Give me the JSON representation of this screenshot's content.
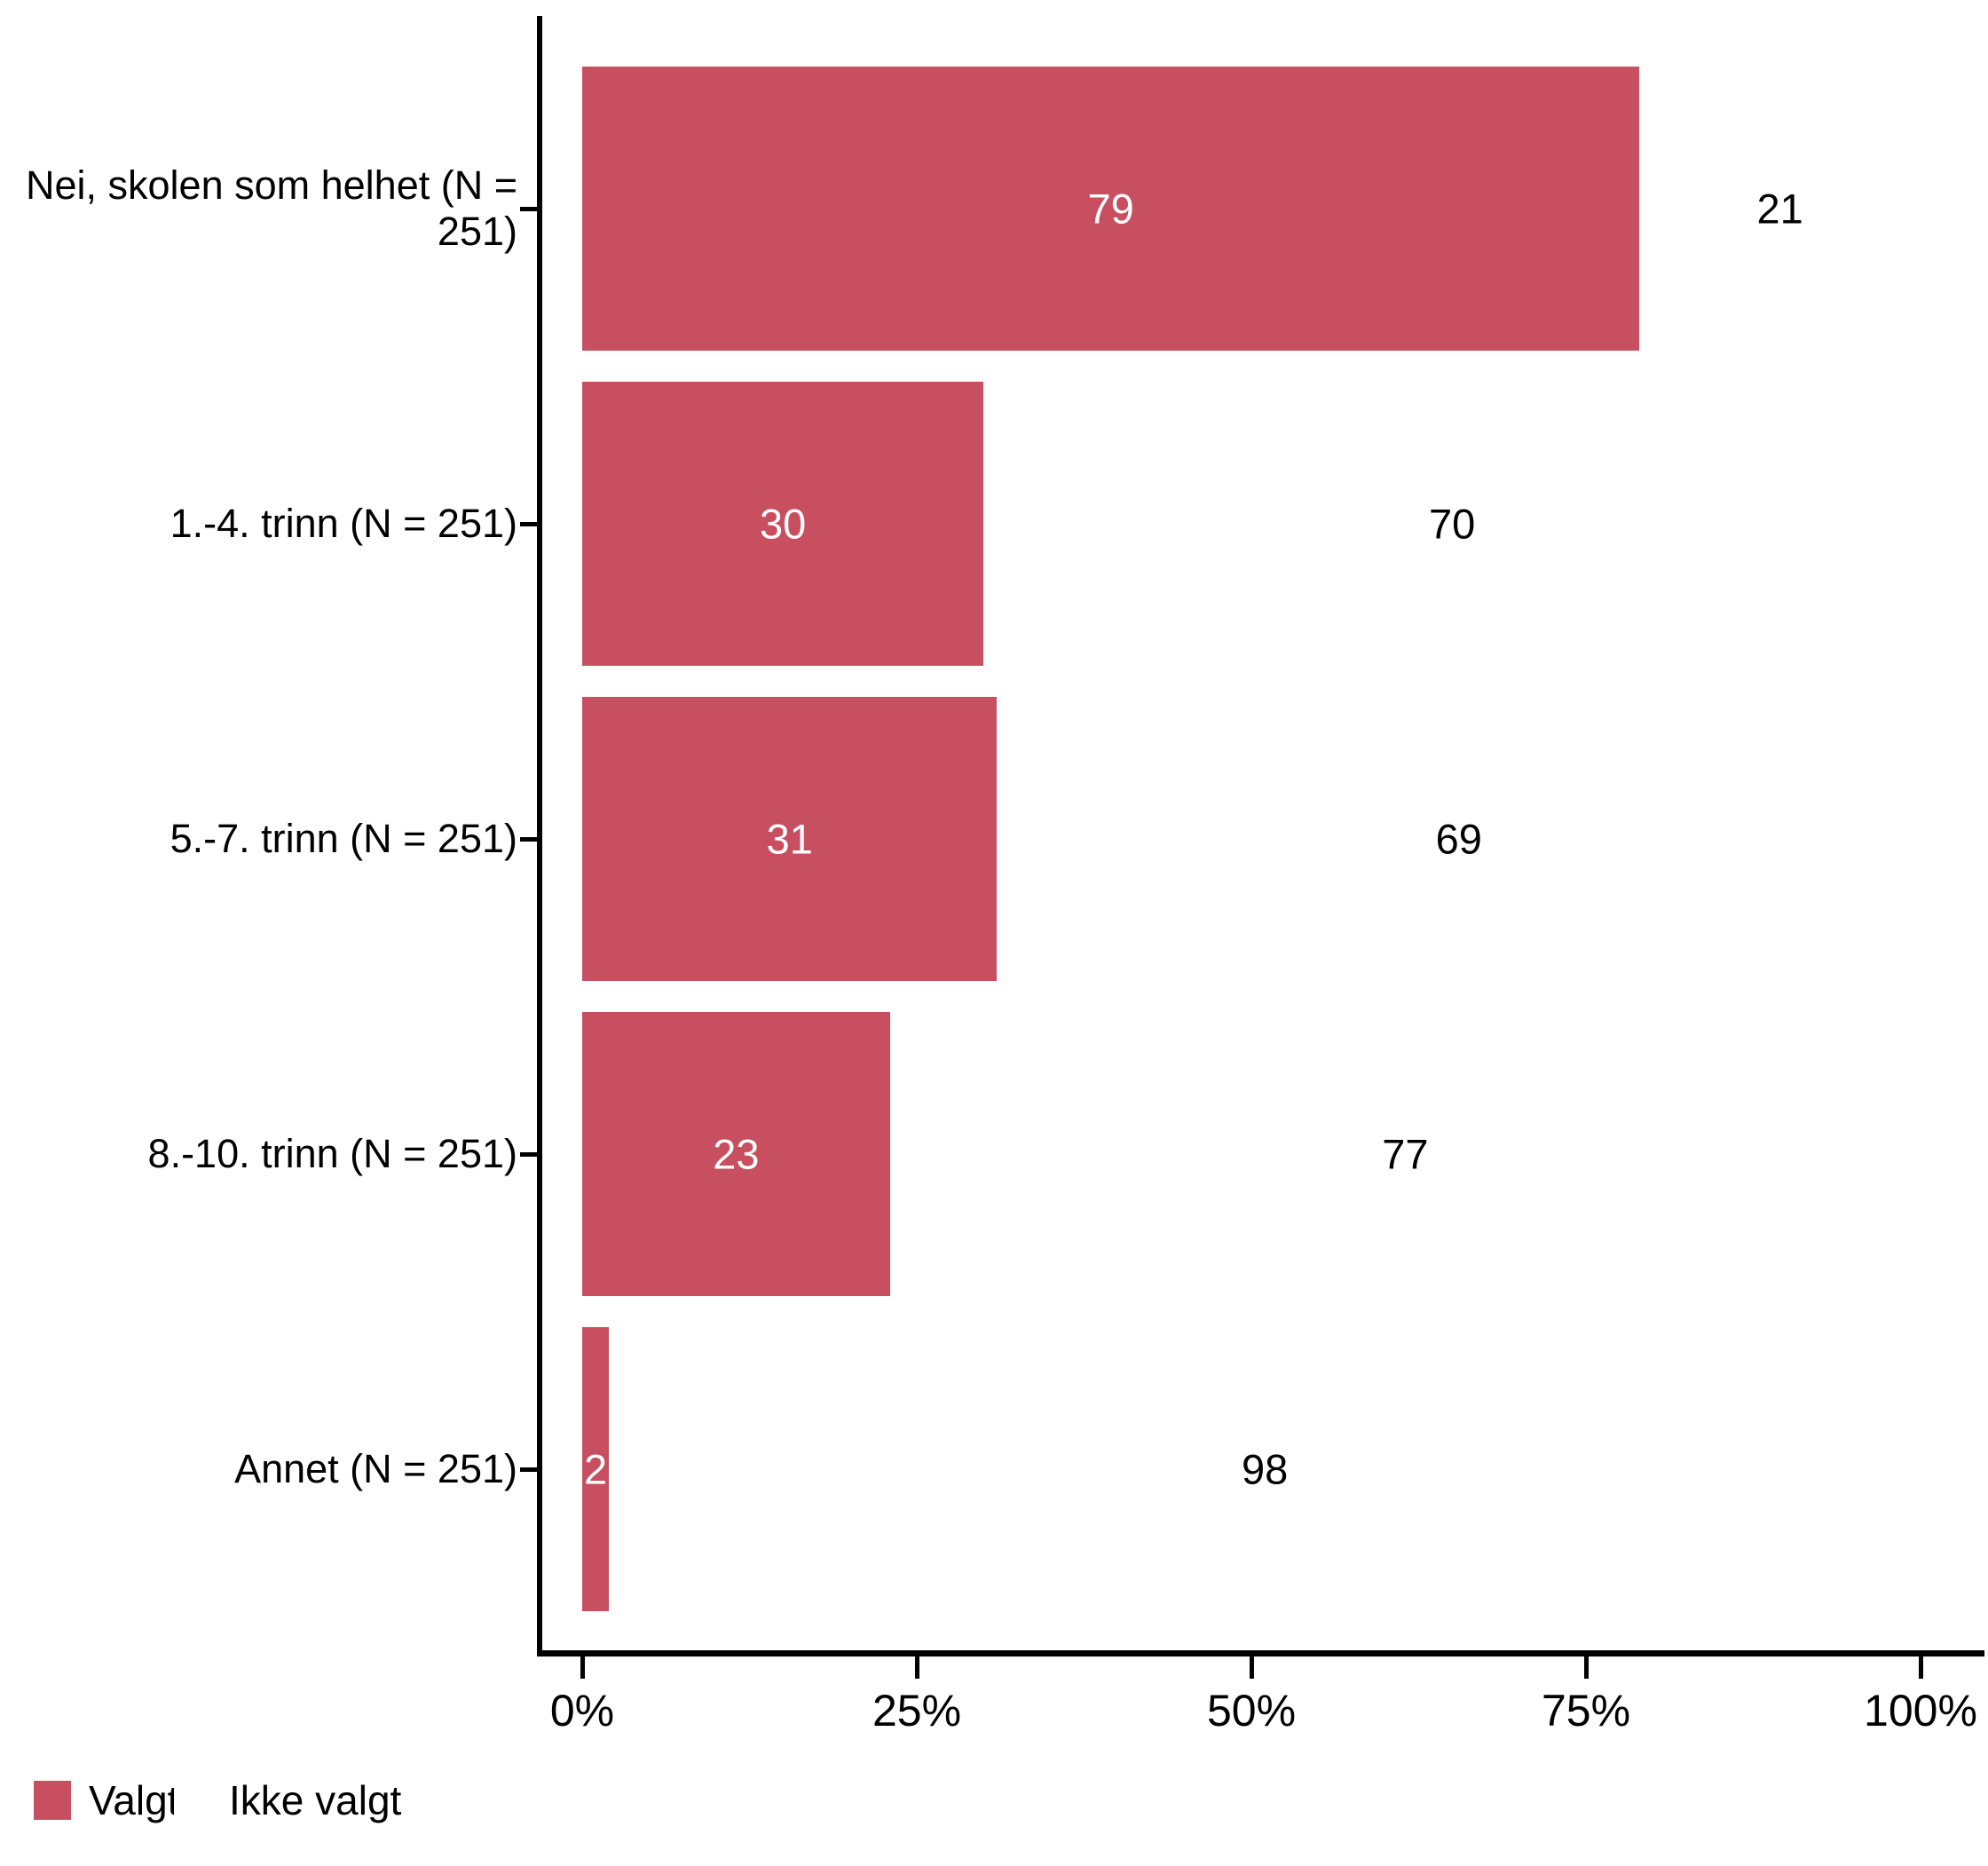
{
  "chart_data": {
    "type": "bar",
    "orientation": "horizontal",
    "title": "",
    "categories": [
      "Nei, skolen som helhet (N = 251)",
      "1.-4. trinn (N = 251)",
      "5.-7. trinn (N = 251)",
      "8.-10. trinn (N = 251)",
      "Annet (N = 251)"
    ],
    "series": [
      {
        "name": "Valgt",
        "color": "#c74f5f",
        "values": [
          79,
          30,
          31,
          23,
          2
        ]
      },
      {
        "name": "Ikke valgt",
        "color": "#ffffff",
        "values": [
          21,
          70,
          69,
          77,
          98
        ]
      }
    ],
    "x_tick_labels": [
      "0%",
      "25%",
      "50%",
      "75%",
      "100%"
    ],
    "x_tick_values": [
      0,
      25,
      50,
      75,
      100
    ],
    "xlim": [
      0,
      100
    ],
    "grid": false,
    "legend_position": "bottom-left",
    "axis_color": "#000000",
    "background_color": "#ffffff",
    "inside_label_color": "#ffffff",
    "outside_label_color": "#000000"
  }
}
